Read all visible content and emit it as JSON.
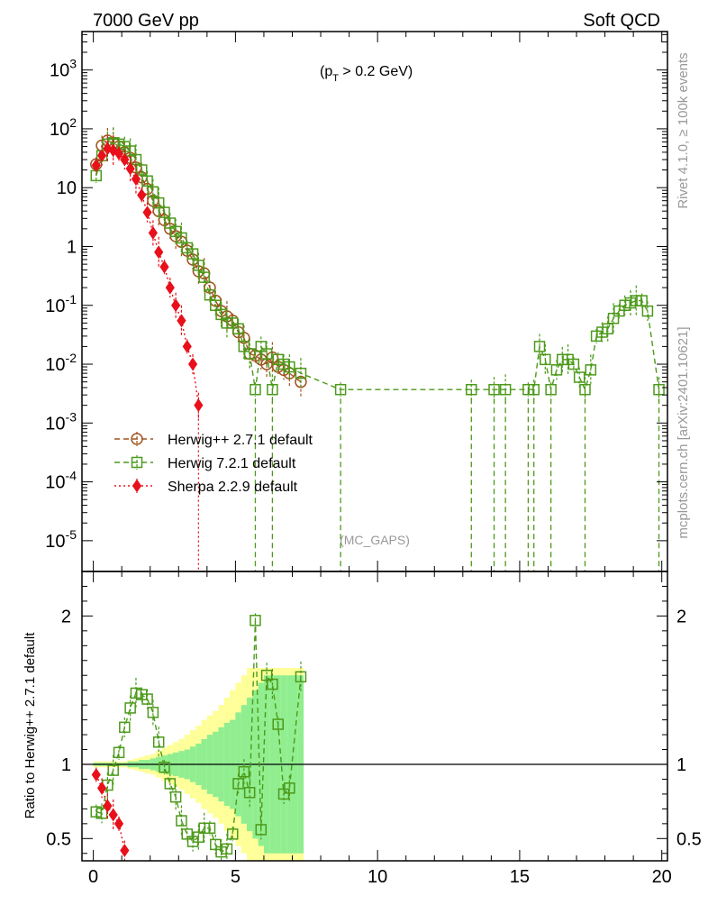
{
  "header": {
    "left_title": "7000 GeV pp",
    "right_title": "Soft QCD",
    "cut_label": "(pT > 0.2 GeV)",
    "cut_p": "(p",
    "cut_sub": "T",
    "cut_rest": " > 0.2 GeV)",
    "gap_label": "(MC_GAPS)",
    "side_rivet": "Rivet 4.1.0, ≥ 100k events",
    "side_mcplots": "mcplots.cern.ch [arXiv:2401.10621]"
  },
  "colors": {
    "herwigpp": "#a0521e",
    "herwig7": "#4c9a1a",
    "sherpa": "#e8101b",
    "band_outer": "#ffff99",
    "band_inner": "#90ee90"
  },
  "chart_data": [
    {
      "type": "line",
      "panel": "main",
      "yscale": "log",
      "xlim": [
        -0.4,
        20.2
      ],
      "ylim": [
        3e-06,
        4500
      ],
      "ytick_labels": [
        "10^-5",
        "10^-4",
        "10^-3",
        "10^-2",
        "10^-1",
        "1",
        "10",
        "10^2",
        "10^3"
      ],
      "legend": [
        {
          "name": "Herwig++ 2.7.1 default",
          "marker": "circle"
        },
        {
          "name": "Herwig 7.2.1 default",
          "marker": "square"
        },
        {
          "name": "Sherpa 2.2.9 default",
          "marker": "diamond"
        }
      ],
      "series": [
        {
          "name": "Herwig++ 2.7.1 default",
          "x": [
            0.1,
            0.3,
            0.5,
            0.7,
            0.9,
            1.1,
            1.3,
            1.5,
            1.7,
            1.9,
            2.1,
            2.3,
            2.5,
            2.7,
            2.9,
            3.1,
            3.3,
            3.5,
            3.7,
            3.9,
            4.1,
            4.3,
            4.5,
            4.7,
            4.9,
            5.1,
            5.3,
            5.5,
            5.7,
            5.9,
            6.1,
            6.3,
            6.5,
            6.7,
            6.9,
            7.3
          ],
          "y": [
            25,
            52,
            63,
            58,
            50,
            40,
            32,
            22,
            15,
            9.5,
            6,
            4,
            2.8,
            2,
            1.5,
            1.2,
            0.85,
            0.6,
            0.38,
            0.35,
            0.2,
            0.12,
            0.08,
            0.065,
            0.055,
            0.035,
            0.028,
            0.015,
            0.014,
            0.012,
            0.01,
            0.013,
            0.009,
            0.008,
            0.007,
            0.005
          ]
        },
        {
          "name": "Herwig 7.2.1 default",
          "x": [
            0.1,
            0.3,
            0.5,
            0.7,
            0.9,
            1.1,
            1.3,
            1.5,
            1.7,
            1.9,
            2.1,
            2.3,
            2.5,
            2.7,
            2.9,
            3.1,
            3.3,
            3.5,
            3.7,
            3.9,
            4.1,
            4.3,
            4.5,
            4.7,
            4.9,
            5.1,
            5.3,
            5.5,
            5.7,
            5.9,
            6.1,
            6.3,
            6.5,
            6.7,
            6.9,
            7.3,
            8.7,
            13.3,
            14.1,
            14.5,
            15.3,
            15.5,
            15.7,
            15.9,
            16.1,
            16.3,
            16.5,
            16.7,
            16.9,
            17.1,
            17.3,
            17.5,
            17.7,
            17.9,
            18.1,
            18.3,
            18.5,
            18.7,
            18.9,
            19.1,
            19.3,
            19.5,
            19.9
          ],
          "y": [
            16,
            35,
            55,
            58,
            55,
            50,
            42,
            30,
            20,
            13,
            8.5,
            5.5,
            3.8,
            2.5,
            1.8,
            1.4,
            0.95,
            0.75,
            0.48,
            0.3,
            0.15,
            0.1,
            0.07,
            0.05,
            0.05,
            0.04,
            0.02,
            0.015,
            0.0037,
            0.02,
            0.015,
            0.0037,
            0.012,
            0.01,
            0.009,
            0.007,
            0.0037,
            0.0037,
            0.0037,
            0.0037,
            0.0037,
            0.0037,
            0.02,
            0.012,
            0.0037,
            0.008,
            0.012,
            0.012,
            0.01,
            0.006,
            0.0037,
            0.008,
            0.03,
            0.035,
            0.04,
            0.06,
            0.08,
            0.1,
            0.11,
            0.12,
            0.12,
            0.08,
            0.0037
          ]
        },
        {
          "name": "Sherpa 2.2.9 default",
          "x": [
            0.1,
            0.3,
            0.5,
            0.7,
            0.9,
            1.1,
            1.3,
            1.5,
            1.7,
            1.9,
            2.1,
            2.3,
            2.5,
            2.7,
            2.9,
            3.1,
            3.3,
            3.5,
            3.7
          ],
          "y": [
            24,
            35,
            46,
            43,
            38,
            30,
            21,
            14,
            7.5,
            3.8,
            1.7,
            0.8,
            0.45,
            0.2,
            0.1,
            0.055,
            0.02,
            0.01,
            0.002
          ]
        }
      ]
    },
    {
      "type": "line",
      "panel": "ratio",
      "ylabel": "Ratio to Herwig++ 2.7.1 default",
      "xlabel": "",
      "xlim": [
        -0.4,
        20.2
      ],
      "ylim": [
        0.35,
        2.3
      ],
      "xticks": [
        0,
        5,
        10,
        15,
        20
      ],
      "yticks": [
        0.5,
        1,
        2
      ],
      "reference": 1,
      "band": {
        "x": [
          0.1,
          0.3,
          0.5,
          0.7,
          0.9,
          1.1,
          1.3,
          1.5,
          1.7,
          1.9,
          2.1,
          2.3,
          2.5,
          2.7,
          2.9,
          3.1,
          3.3,
          3.5,
          3.7,
          3.9,
          4.1,
          4.3,
          4.5,
          4.7,
          4.9,
          5.1,
          5.3,
          5.5,
          5.7,
          5.9,
          6.1,
          6.3,
          6.5,
          6.7,
          6.9,
          7.1,
          7.3
        ],
        "inner": [
          0.01,
          0.01,
          0.01,
          0.01,
          0.01,
          0.01,
          0.02,
          0.02,
          0.03,
          0.03,
          0.04,
          0.05,
          0.06,
          0.07,
          0.08,
          0.09,
          0.1,
          0.12,
          0.14,
          0.17,
          0.2,
          0.22,
          0.25,
          0.28,
          0.3,
          0.35,
          0.4,
          0.45,
          0.5,
          0.55,
          0.6,
          0.6,
          0.6,
          0.6,
          0.6,
          0.6,
          0.6
        ],
        "outer": [
          0.02,
          0.02,
          0.02,
          0.02,
          0.02,
          0.02,
          0.03,
          0.04,
          0.05,
          0.06,
          0.07,
          0.09,
          0.11,
          0.13,
          0.15,
          0.17,
          0.2,
          0.23,
          0.26,
          0.3,
          0.33,
          0.36,
          0.4,
          0.45,
          0.5,
          0.55,
          0.6,
          0.65,
          0.65,
          0.65,
          0.65,
          0.65,
          0.65,
          0.65,
          0.65,
          0.65,
          0.65
        ]
      },
      "series": [
        {
          "name": "Herwig 7.2.1 default",
          "x": [
            0.1,
            0.3,
            0.5,
            0.7,
            0.9,
            1.1,
            1.3,
            1.5,
            1.7,
            1.9,
            2.1,
            2.3,
            2.5,
            2.7,
            2.9,
            3.1,
            3.3,
            3.5,
            3.7,
            3.9,
            4.1,
            4.3,
            4.5,
            4.7,
            4.9,
            5.1,
            5.3,
            5.5,
            5.7,
            5.9,
            6.1,
            6.3,
            6.5,
            6.7,
            6.9,
            7.3
          ],
          "y": [
            0.68,
            0.67,
            0.86,
            0.96,
            1.08,
            1.25,
            1.38,
            1.48,
            1.47,
            1.44,
            1.35,
            1.15,
            0.98,
            0.87,
            0.78,
            0.62,
            0.53,
            0.48,
            0.51,
            0.57,
            0.57,
            0.46,
            0.41,
            0.43,
            0.53,
            0.87,
            0.95,
            0.81,
            1.97,
            0.56,
            1.6,
            1.54,
            1.27,
            0.8,
            0.84,
            1.59
          ]
        },
        {
          "name": "Sherpa 2.2.9 default",
          "x": [
            0.1,
            0.3,
            0.5,
            0.7,
            0.9,
            1.1
          ],
          "y": [
            0.93,
            0.84,
            0.72,
            0.66,
            0.6,
            0.42
          ]
        }
      ]
    }
  ]
}
